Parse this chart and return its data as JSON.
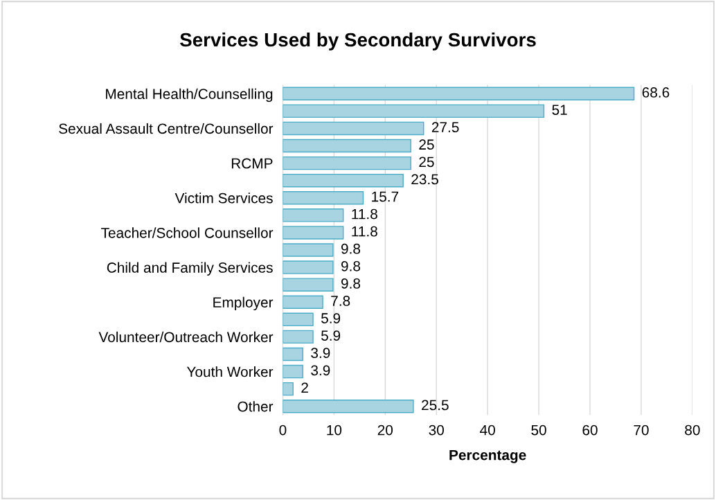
{
  "chart_data": {
    "type": "bar",
    "orientation": "horizontal",
    "title": "Services Used by Secondary Survivors",
    "xlabel": "Percentage",
    "categories": [
      "Mental Health/Counselling",
      null,
      "Sexual Assault Centre/Counsellor",
      null,
      "RCMP",
      null,
      "Victim Services",
      null,
      "Teacher/School Counsellor",
      null,
      "Child and Family Services",
      null,
      "Employer",
      null,
      "Volunteer/Outreach Worker",
      null,
      "Youth Worker",
      null,
      "Other"
    ],
    "values": [
      68.6,
      51,
      27.5,
      25,
      25,
      23.5,
      15.7,
      11.8,
      11.8,
      9.8,
      9.8,
      9.8,
      7.8,
      5.9,
      5.9,
      3.9,
      3.9,
      2,
      25.5
    ],
    "color": "#a8d4e2",
    "xlim": [
      0,
      80
    ],
    "xticks": [
      0,
      10,
      20,
      30,
      40,
      50,
      60,
      70,
      80
    ],
    "grid": "x",
    "data_labels": true,
    "legend": false
  }
}
